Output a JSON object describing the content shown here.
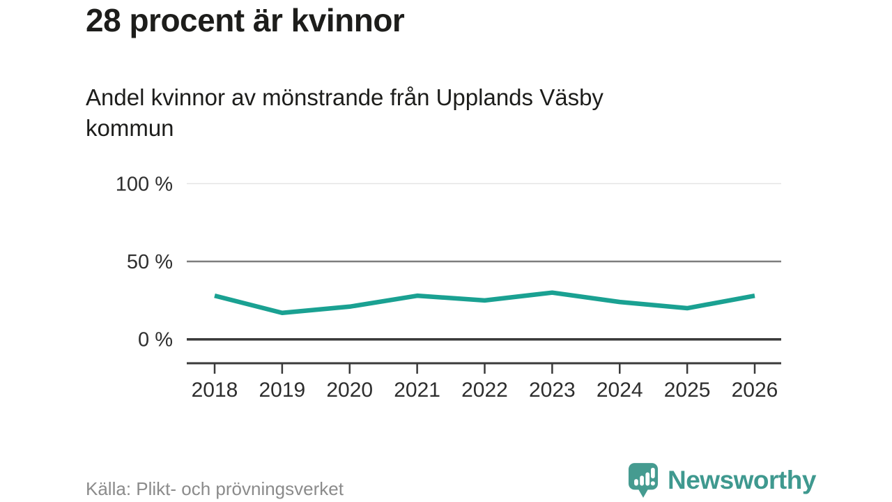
{
  "page": {
    "title": "28 procent är kvinnor",
    "subtitle": "Andel kvinnor av mönstrande från Upplands Väsby\nkommun",
    "source": "Källa: Plikt- och prövningsverket",
    "brand": {
      "name": "Newsworthy",
      "logo_icon": "bar-chart-speech-bubble-icon"
    }
  },
  "chart_data": {
    "type": "line",
    "title": "28 procent är kvinnor",
    "subtitle": "Andel kvinnor av mönstrande från Upplands Väsby kommun",
    "categories": [
      "2018",
      "2019",
      "2020",
      "2021",
      "2022",
      "2023",
      "2024",
      "2025",
      "2026"
    ],
    "series": [
      {
        "name": "Andel kvinnor av mönstrande",
        "values": [
          28,
          17,
          21,
          28,
          25,
          30,
          24,
          20,
          28
        ]
      }
    ],
    "unit": "%",
    "xlabel": "",
    "ylabel": "",
    "ylim": [
      0,
      100
    ],
    "yticks": [
      {
        "value": 0,
        "label": "0 %"
      },
      {
        "value": 50,
        "label": "50 %"
      },
      {
        "value": 100,
        "label": "100 %"
      }
    ],
    "grid": "horizontal",
    "legend": "none",
    "line_color": "#1aa192",
    "source": "Källa: Plikt- och prövningsverket"
  },
  "colors": {
    "line": "#1aa192",
    "logo": "#459b90",
    "wordmark": "#3f998f",
    "grid_light": "#e4e4e4",
    "grid_mid": "#7d7d7d",
    "axis": "#3a3a3a",
    "text": "#1d1d1b",
    "muted": "#8b8b8b"
  }
}
